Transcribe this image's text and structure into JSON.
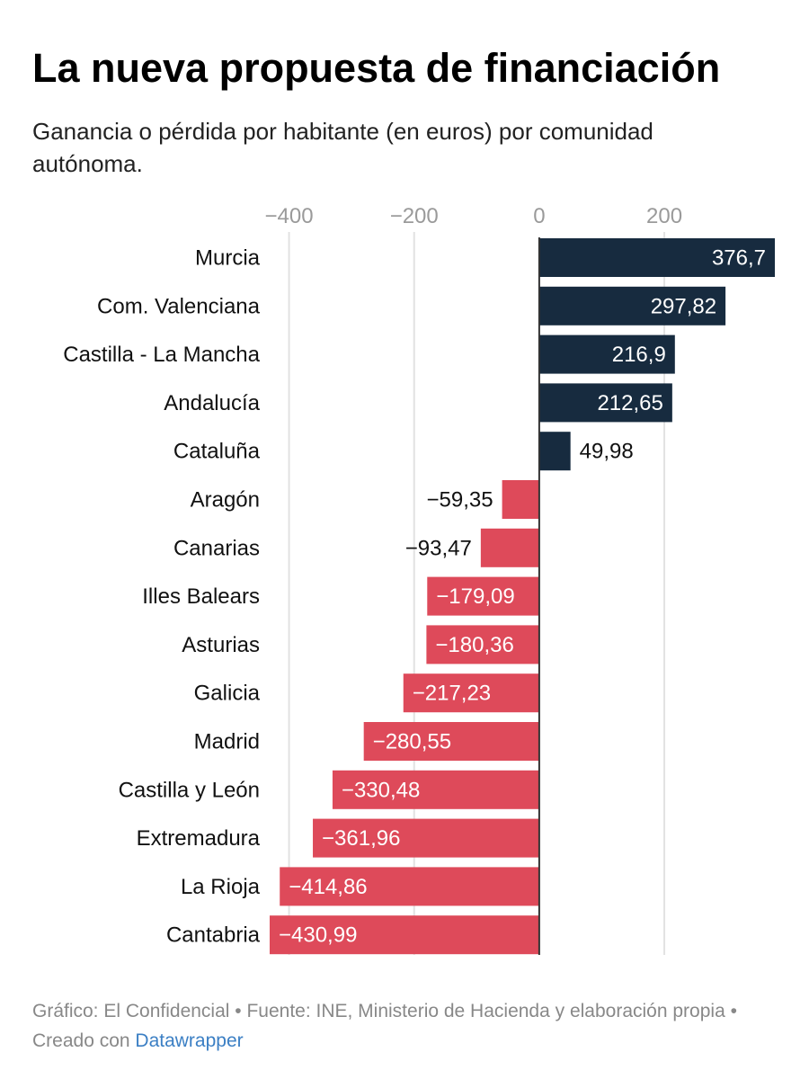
{
  "header": {
    "title": "La nueva propuesta de financiación",
    "subtitle": "Ganancia o pérdida por habitante (en euros) por comunidad autónoma."
  },
  "footer": {
    "text": "Gráfico: El Confidencial • Fuente: INE, Ministerio de Hacienda y elaboración propia • Creado con ",
    "link_label": "Datawrapper"
  },
  "colors": {
    "positive": "#172b3f",
    "negative": "#de4a5a",
    "grid": "#e2e2e2",
    "zero_line": "#333333",
    "tick_label": "#9a9a9a"
  },
  "chart_data": {
    "type": "bar",
    "orientation": "horizontal",
    "title": "La nueva propuesta de financiación",
    "subtitle": "Ganancia o pérdida por habitante (en euros) por comunidad autónoma.",
    "xlim": [
      -430.99,
      376.7
    ],
    "x_ticks": [
      -400,
      -200,
      0,
      200
    ],
    "x_tick_labels": [
      "−400",
      "−200",
      "0",
      "200"
    ],
    "grid": true,
    "categories": [
      "Murcia",
      "Com. Valenciana",
      "Castilla - La Mancha",
      "Andalucía",
      "Cataluña",
      "Aragón",
      "Canarias",
      "Illes Balears",
      "Asturias",
      "Galicia",
      "Madrid",
      "Castilla y León",
      "Extremadura",
      "La Rioja",
      "Cantabria"
    ],
    "values": [
      376.7,
      297.82,
      216.9,
      212.65,
      49.98,
      -59.35,
      -93.47,
      -179.09,
      -180.36,
      -217.23,
      -280.55,
      -330.48,
      -361.96,
      -414.86,
      -430.99
    ],
    "value_labels": [
      "376,7",
      "297,82",
      "216,9",
      "212,65",
      "49,98",
      "−59,35",
      "−93,47",
      "−179,09",
      "−180,36",
      "−217,23",
      "−280,55",
      "−330,48",
      "−361,96",
      "−414,86",
      "−430,99"
    ]
  }
}
